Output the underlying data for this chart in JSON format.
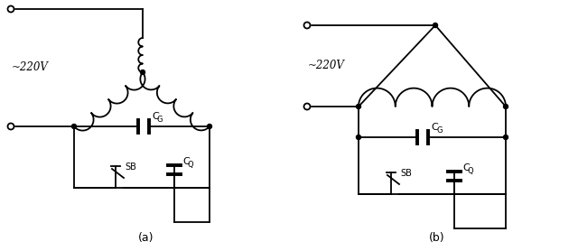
{
  "bg_color": "#ffffff",
  "line_color": "#000000",
  "label_a": "(a)",
  "label_b": "(b)",
  "voltage_label": "~220V",
  "figsize": [
    6.4,
    2.78
  ],
  "dpi": 100
}
